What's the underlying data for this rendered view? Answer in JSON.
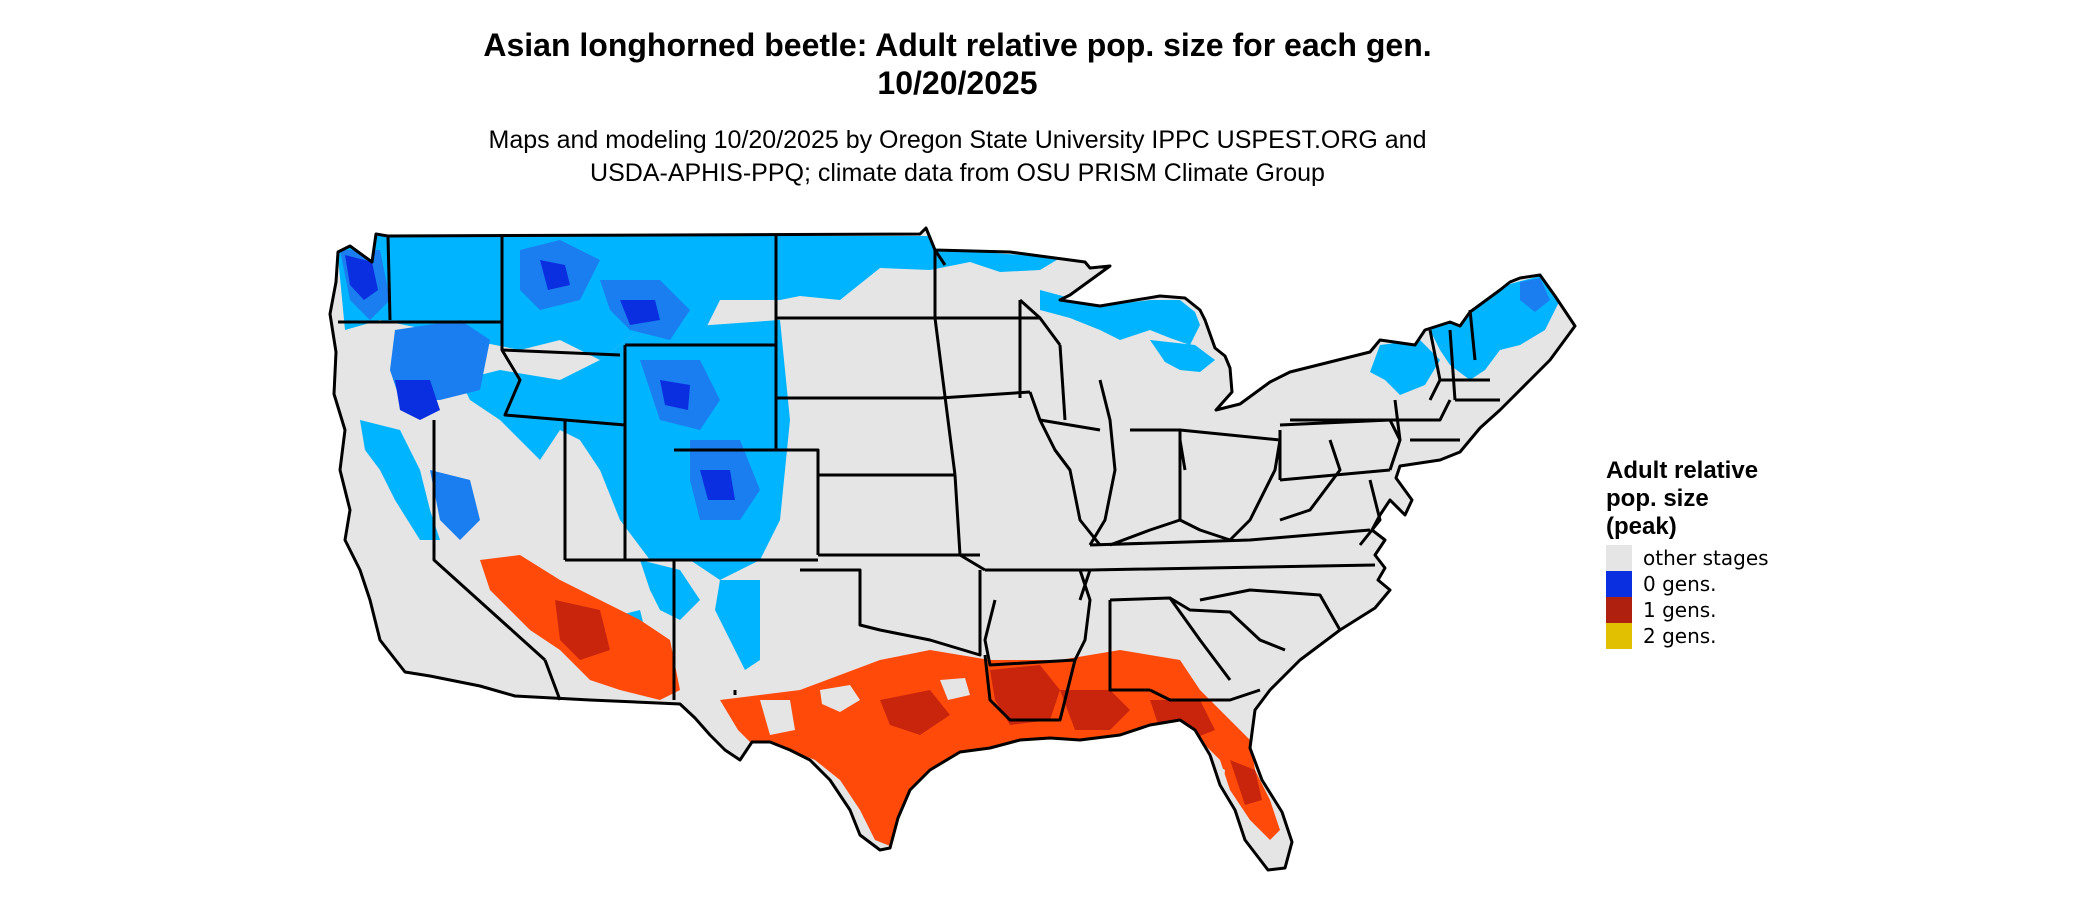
{
  "title": {
    "line1": "Asian longhorned beetle: Adult relative pop. size for each gen.",
    "line2": "10/20/2025"
  },
  "subtitle": {
    "line1": "Maps and modeling 10/20/2025 by Oregon State University IPPC USPEST.ORG and",
    "line2": "USDA-APHIS-PPQ; climate data from OSU PRISM Climate Group"
  },
  "legend": {
    "title_line1": "Adult relative",
    "title_line2": "pop. size",
    "title_line3": "(peak)",
    "items": [
      {
        "label": "other stages",
        "color": "#e5e5e5"
      },
      {
        "label": "0 gens.",
        "color": "#0a2fe0"
      },
      {
        "label": "1 gens.",
        "color": "#b0200f"
      },
      {
        "label": "2 gens.",
        "color": "#e0c000"
      }
    ]
  },
  "colors": {
    "land": "#e5e5e5",
    "cold_light": "#00b4ff",
    "cold_mid": "#1a7df0",
    "cold_dark": "#0a2fe0",
    "warm_light": "#ff4a0a",
    "warm_dark": "#c8250c",
    "border": "#000000"
  }
}
